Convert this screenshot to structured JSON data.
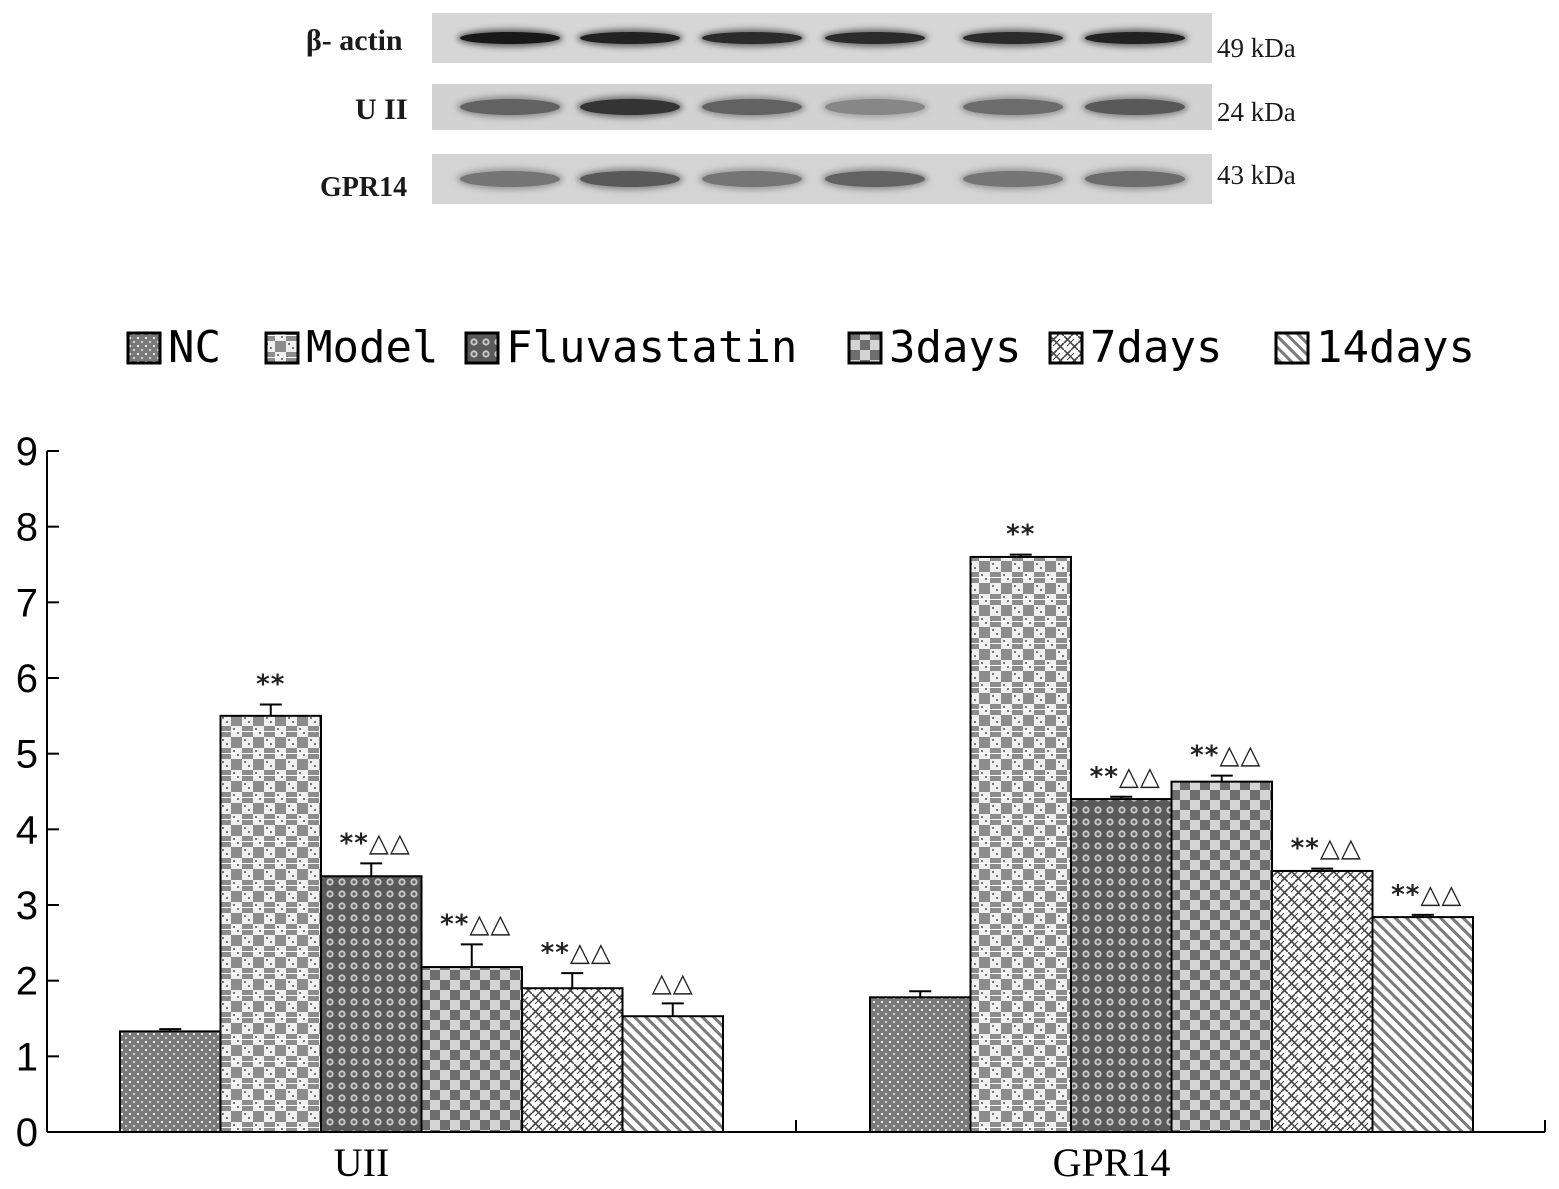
{
  "blot": {
    "rows": [
      {
        "label": "β- actin",
        "kda": "49 kDa",
        "bg": "#d6d6d6",
        "band_intensity": [
          0.95,
          0.9,
          0.85,
          0.85,
          0.85,
          0.9
        ]
      },
      {
        "label": "U II",
        "kda": "24 kDa",
        "bg": "#d2d2d2",
        "band_intensity": [
          0.55,
          0.8,
          0.55,
          0.35,
          0.5,
          0.6
        ]
      },
      {
        "label": "GPR14",
        "kda": "43 kDa",
        "bg": "#d4d4d4",
        "band_intensity": [
          0.45,
          0.6,
          0.45,
          0.55,
          0.45,
          0.5
        ]
      }
    ]
  },
  "chart_data": {
    "type": "bar",
    "categories": [
      "UII",
      "GPR14"
    ],
    "ylim": [
      0,
      9
    ],
    "yticks": [
      "0",
      "1",
      "2",
      "3",
      "4",
      "5",
      "6",
      "7",
      "8",
      "9"
    ],
    "legend_position": "top",
    "series": [
      {
        "name": "NC",
        "values": [
          1.33,
          1.78
        ],
        "errors": [
          0.03,
          0.08
        ],
        "annotations": [
          "",
          ""
        ],
        "pattern": "dots"
      },
      {
        "name": "Model",
        "values": [
          5.5,
          7.6
        ],
        "errors": [
          0.15,
          0.03
        ],
        "annotations": [
          "**",
          "**"
        ],
        "pattern": "checker-fine"
      },
      {
        "name": "Fluvastatin",
        "values": [
          3.38,
          4.4
        ],
        "errors": [
          0.17,
          0.03
        ],
        "annotations": [
          "**△△",
          "**△△"
        ],
        "pattern": "circles"
      },
      {
        "name": "3days",
        "values": [
          2.18,
          4.63
        ],
        "errors": [
          0.3,
          0.08
        ],
        "annotations": [
          "**△△",
          "**△△"
        ],
        "pattern": "checker"
      },
      {
        "name": "7days",
        "values": [
          1.9,
          3.45
        ],
        "errors": [
          0.2,
          0.03
        ],
        "annotations": [
          "**△△",
          "**△△"
        ],
        "pattern": "weave"
      },
      {
        "name": "14days",
        "values": [
          1.53,
          2.84
        ],
        "errors": [
          0.17,
          0.03
        ],
        "annotations": [
          "△△",
          "**△△"
        ],
        "pattern": "diagonal"
      }
    ]
  }
}
